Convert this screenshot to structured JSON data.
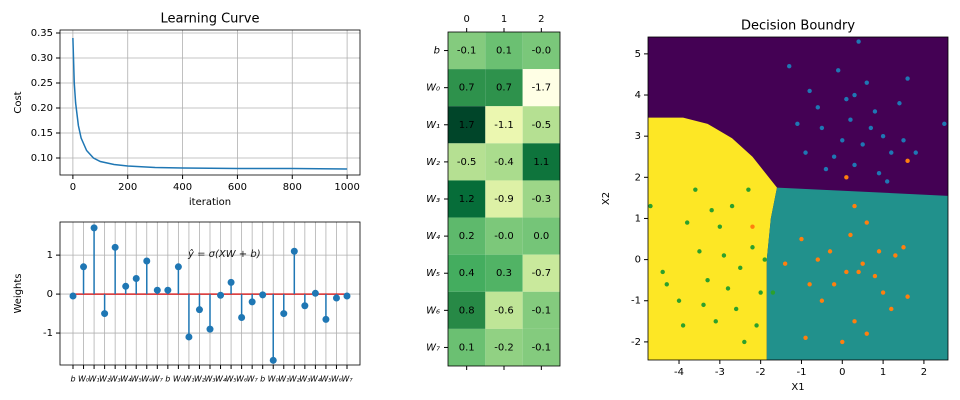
{
  "chart_data": [
    {
      "type": "line",
      "title": "Learning Curve",
      "xlabel": "iteration",
      "ylabel": "Cost",
      "color": "#1f77b4",
      "grid": true,
      "x": [
        0,
        5,
        10,
        20,
        30,
        50,
        75,
        100,
        150,
        200,
        300,
        400,
        600,
        800,
        1000
      ],
      "values": [
        0.34,
        0.25,
        0.21,
        0.165,
        0.14,
        0.115,
        0.1,
        0.093,
        0.087,
        0.084,
        0.081,
        0.08,
        0.079,
        0.079,
        0.078
      ],
      "xlim": [
        -47,
        1047
      ],
      "xticks": [
        0,
        200,
        400,
        600,
        800,
        1000
      ],
      "ylim": [
        0.066,
        0.356
      ],
      "yticks": [
        {
          "value": 0.1,
          "label": "0.10"
        },
        {
          "value": 0.15,
          "label": "0.15"
        },
        {
          "value": 0.2,
          "label": "0.20"
        },
        {
          "value": 0.25,
          "label": "0.25"
        },
        {
          "value": 0.3,
          "label": "0.30"
        },
        {
          "value": 0.35,
          "label": "0.35"
        }
      ]
    },
    {
      "type": "stem",
      "ylabel": "Weights",
      "annotation": "ŷ = σ(XW + b)",
      "color": "#1f77b4",
      "baseline_color": "#d62728",
      "grid": true,
      "categories": [
        "b",
        "W₀",
        "W₁",
        "W₂",
        "W₃",
        "W₄",
        "W₅",
        "W₆",
        "W₇",
        "b",
        "W₀",
        "W₁",
        "W₂",
        "W₃",
        "W₄",
        "W₅",
        "W₆",
        "W₇",
        "b",
        "W₀",
        "W₁",
        "W₂",
        "W₃",
        "W₄",
        "W₅",
        "W₆",
        "W₇"
      ],
      "values": [
        -0.05,
        0.7,
        1.7,
        -0.5,
        1.2,
        0.2,
        0.4,
        0.85,
        0.1,
        0.1,
        0.7,
        -1.1,
        -0.4,
        -0.9,
        -0.03,
        0.3,
        -0.6,
        -0.2,
        -0.02,
        -1.7,
        -0.5,
        1.1,
        -0.3,
        0.02,
        -0.65,
        -0.1,
        -0.05
      ],
      "ylim": [
        -1.82,
        1.85
      ],
      "yticks": [
        -1,
        0,
        1
      ]
    },
    {
      "type": "heatmap",
      "columns": [
        "0",
        "1",
        "2"
      ],
      "rows": [
        "b",
        "W₀",
        "W₁",
        "W₂",
        "W₃",
        "W₄",
        "W₅",
        "W₆",
        "W₇"
      ],
      "values": [
        [
          -0.1,
          0.1,
          -0.02
        ],
        [
          0.7,
          0.7,
          -1.7
        ],
        [
          1.7,
          -1.1,
          -0.5
        ],
        [
          -0.5,
          -0.4,
          1.1
        ],
        [
          1.2,
          -0.9,
          -0.3
        ],
        [
          0.2,
          -0.03,
          0.02
        ],
        [
          0.4,
          0.3,
          -0.7
        ],
        [
          0.8,
          -0.6,
          -0.1
        ],
        [
          0.1,
          -0.2,
          -0.1
        ]
      ],
      "value_labels": [
        [
          "-0.1",
          "0.1",
          "-0.0"
        ],
        [
          "0.7",
          "0.7",
          "-1.7"
        ],
        [
          "1.7",
          "-1.1",
          "-0.5"
        ],
        [
          "-0.5",
          "-0.4",
          "1.1"
        ],
        [
          "1.2",
          "-0.9",
          "-0.3"
        ],
        [
          "0.2",
          "-0.0",
          "0.0"
        ],
        [
          "0.4",
          "0.3",
          "-0.7"
        ],
        [
          "0.8",
          "-0.6",
          "-0.1"
        ],
        [
          "0.1",
          "-0.2",
          "-0.1"
        ]
      ],
      "vlim": [
        -1.7,
        1.7
      ],
      "colormap": [
        "#ffffe5",
        "#f7fcb9",
        "#d9f0a3",
        "#addd8e",
        "#78c679",
        "#41ab5d",
        "#238443",
        "#006837",
        "#004529"
      ]
    },
    {
      "type": "scatter",
      "title": "Decision Boundry",
      "xlabel": "X1",
      "ylabel": "X2",
      "xlim": [
        -4.76,
        2.59
      ],
      "ylim": [
        -2.44,
        5.41
      ],
      "xticks": [
        -4,
        -3,
        -2,
        -1,
        0,
        1,
        2
      ],
      "yticks": [
        -2,
        -1,
        0,
        1,
        2,
        3,
        4,
        5
      ],
      "regions": [
        {
          "color": "#440154",
          "x": [
            -4.76,
            2.59,
            2.59,
            -4.76
          ],
          "y": [
            5.41,
            5.41,
            -2.44,
            -2.44
          ]
        },
        {
          "color": "#fde725",
          "x": [
            -4.76,
            -3.9,
            -3.3,
            -2.7,
            -2.2,
            -1.6,
            -1.75,
            -1.85,
            -1.85,
            -4.76
          ],
          "y": [
            3.45,
            3.45,
            3.3,
            2.95,
            2.5,
            1.75,
            1.0,
            0,
            -2.44,
            -2.44
          ]
        },
        {
          "color": "#21918c",
          "x": [
            -1.6,
            2.59,
            2.59,
            -1.85,
            -1.85,
            -1.75
          ],
          "y": [
            1.75,
            1.55,
            -2.44,
            -2.44,
            0,
            1.0
          ]
        }
      ],
      "series": [
        {
          "color": "#1f77b4",
          "x": [
            0.3,
            -0.5,
            1.2,
            0.8,
            -0.2,
            0.1,
            1.6,
            0.5,
            -0.8,
            1.0,
            0.2,
            -1.3,
            0.9,
            1.8,
            -0.4,
            0.6,
            1.4,
            -1.1,
            2.5,
            0.0,
            0.4,
            -0.6,
            1.1,
            -0.9,
            0.7,
            1.5,
            -0.1,
            0.3
          ],
          "values": [
            4.0,
            3.2,
            2.6,
            3.6,
            2.5,
            3.9,
            4.4,
            2.8,
            4.1,
            3.0,
            3.4,
            4.7,
            2.1,
            2.6,
            2.2,
            4.3,
            3.8,
            3.3,
            3.3,
            2.9,
            5.3,
            3.7,
            1.9,
            2.6,
            3.2,
            2.9,
            4.6,
            2.3
          ]
        },
        {
          "color": "#ff7f0e",
          "x": [
            0.1,
            0.5,
            -0.3,
            1.0,
            0.3,
            -0.8,
            1.5,
            0.8,
            -0.5,
            0.2,
            1.2,
            -1.0,
            0.6,
            0.0,
            1.6,
            -0.2,
            0.4,
            -1.4,
            0.9,
            -0.6,
            0.3,
            1.3,
            -2.2,
            0.1,
            1.6,
            -0.9,
            0.6
          ],
          "values": [
            -0.3,
            -0.1,
            0.2,
            -0.8,
            -1.5,
            -0.6,
            0.3,
            -0.4,
            -1.0,
            0.6,
            -1.2,
            0.5,
            0.9,
            -2.0,
            -0.9,
            -0.6,
            -0.3,
            -0.1,
            0.2,
            0.0,
            1.3,
            0.1,
            0.8,
            2.0,
            2.4,
            -1.9,
            -1.8
          ]
        },
        {
          "color": "#2ca02c",
          "x": [
            -3.5,
            -2.8,
            -3.0,
            -4.0,
            -2.5,
            -3.3,
            -2.2,
            -3.8,
            -2.7,
            -4.4,
            -3.1,
            -2.4,
            -3.6,
            -2.0,
            -4.3,
            -2.9,
            -3.4,
            -2.3,
            -1.9,
            -3.9,
            -2.6,
            -4.7,
            -3.2,
            -1.7,
            -2.1
          ],
          "values": [
            0.2,
            -0.7,
            0.8,
            -1.0,
            -0.2,
            -0.5,
            0.3,
            0.9,
            1.3,
            -0.3,
            -1.5,
            -2.0,
            1.7,
            -0.8,
            -0.6,
            0.1,
            -1.1,
            1.7,
            0.0,
            -1.6,
            -1.2,
            1.3,
            1.2,
            -0.8,
            -1.6
          ]
        }
      ]
    }
  ]
}
